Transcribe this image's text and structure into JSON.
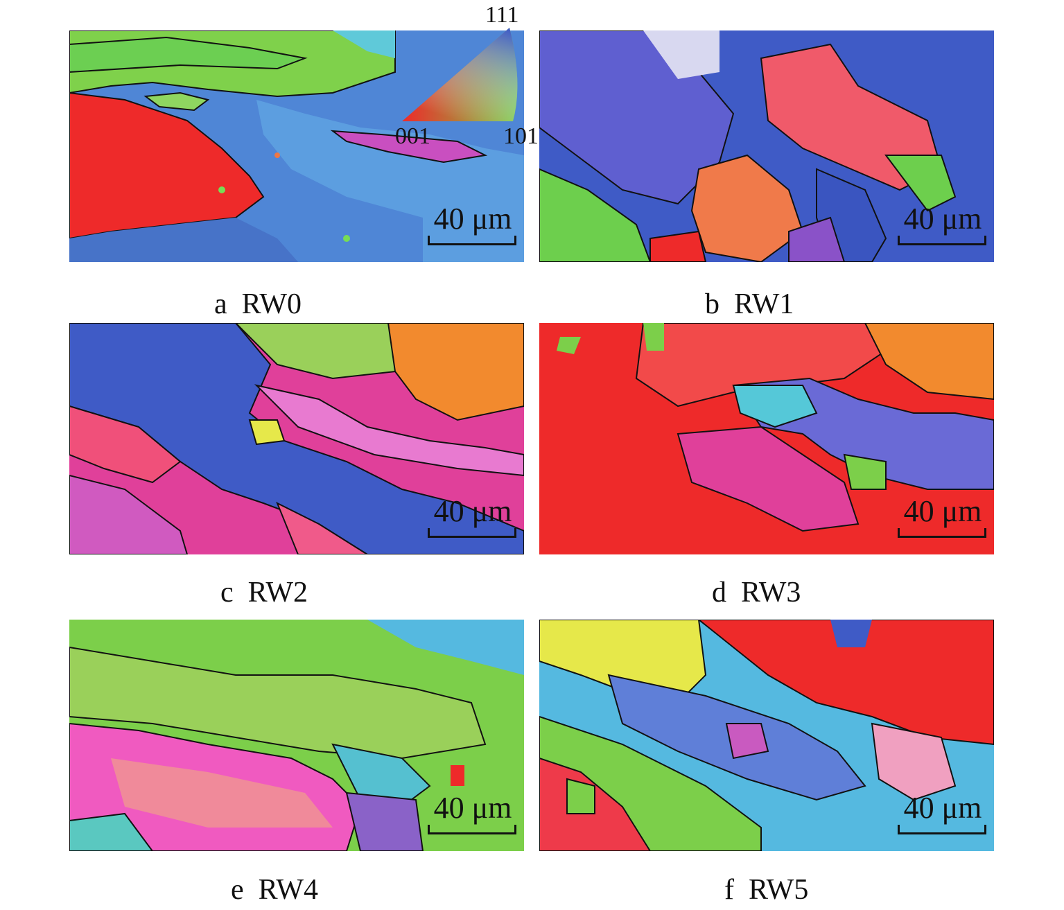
{
  "panels": [
    {
      "id": "a",
      "caption": "a  RW0",
      "scale": "40 μm"
    },
    {
      "id": "b",
      "caption": "b  RW1",
      "scale": "40 μm"
    },
    {
      "id": "c",
      "caption": "c  RW2",
      "scale": "40 μm"
    },
    {
      "id": "d",
      "caption": "d  RW3",
      "scale": "40 μm"
    },
    {
      "id": "e",
      "caption": "e  RW4",
      "scale": "40 μm"
    },
    {
      "id": "f",
      "caption": "f  RW5",
      "scale": "40 μm"
    }
  ],
  "ipf_key": {
    "top": "111",
    "left": "001",
    "right": "101"
  },
  "colors": {
    "red_001": "#ee2a2a",
    "green_101": "#7ccf4a",
    "blue_111": "#3f5bc6",
    "magenta": "#e0409a",
    "cyan": "#55b9e0",
    "orange": "#f28a2e",
    "yellow": "#e6e84a",
    "boundary": "#111111"
  }
}
